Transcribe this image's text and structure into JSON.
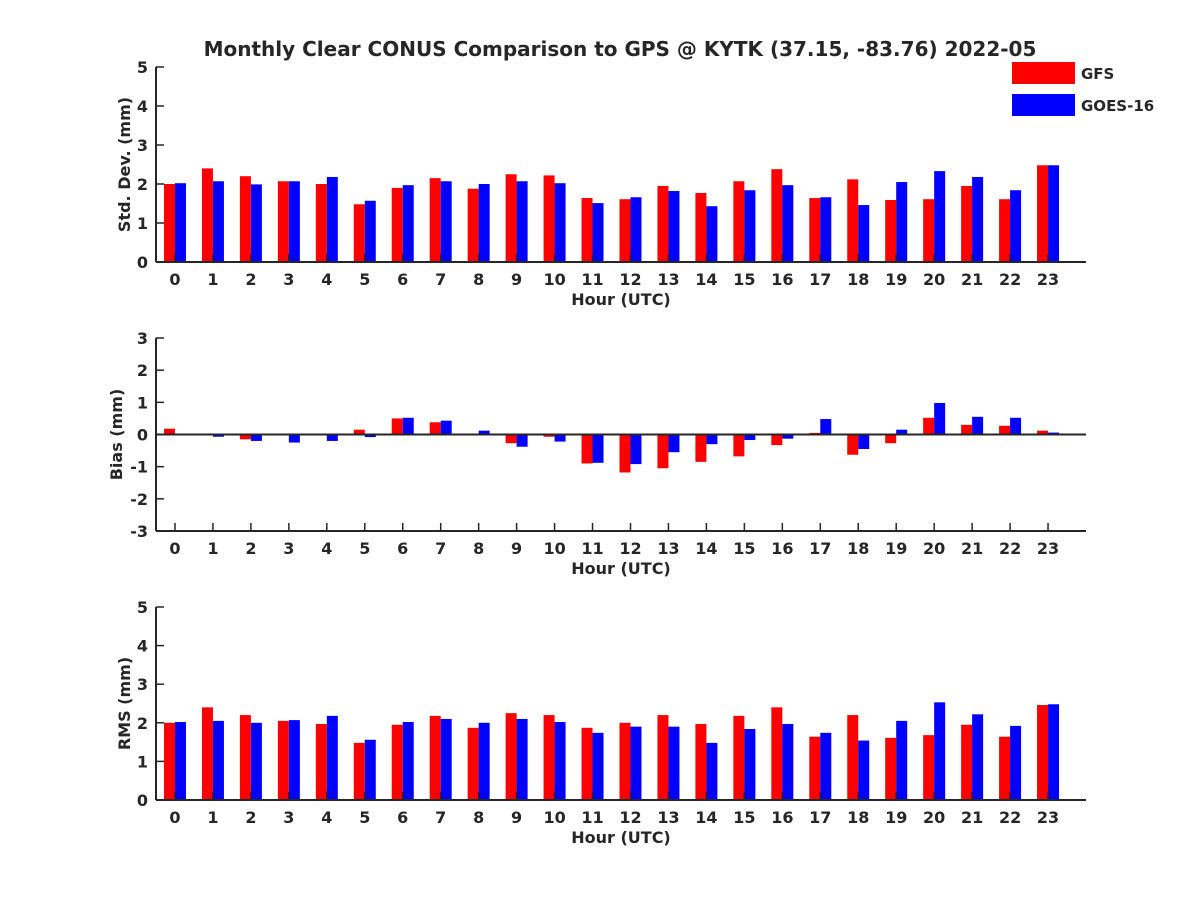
{
  "title": "Monthly Clear CONUS Comparison to GPS @ KYTK (37.15, -83.76) 2022-05",
  "legend": [
    {
      "name": "GFS",
      "color": "#ff0000"
    },
    {
      "name": "GOES-16",
      "color": "#0000ff"
    }
  ],
  "chart_data": [
    {
      "type": "bar",
      "xlabel": "Hour (UTC)",
      "ylabel": "Std. Dev. (mm)",
      "ylim": [
        0,
        5
      ],
      "yticks": [
        0,
        1,
        2,
        3,
        4,
        5
      ],
      "categories": [
        "0",
        "1",
        "2",
        "3",
        "4",
        "5",
        "6",
        "7",
        "8",
        "9",
        "10",
        "11",
        "12",
        "13",
        "14",
        "15",
        "16",
        "17",
        "18",
        "19",
        "20",
        "21",
        "22",
        "23"
      ],
      "series": [
        {
          "name": "GFS",
          "color": "#ff0000",
          "values": [
            2.0,
            2.4,
            2.2,
            2.07,
            2.0,
            1.48,
            1.9,
            2.15,
            1.88,
            2.25,
            2.22,
            1.64,
            1.61,
            1.95,
            1.77,
            2.07,
            2.38,
            1.64,
            2.12,
            1.59,
            1.61,
            1.95,
            1.61,
            2.48
          ]
        },
        {
          "name": "GOES-16",
          "color": "#0000ff",
          "values": [
            2.02,
            2.07,
            1.99,
            2.07,
            2.18,
            1.57,
            1.97,
            2.07,
            2.0,
            2.07,
            2.02,
            1.51,
            1.66,
            1.82,
            1.43,
            1.84,
            1.97,
            1.66,
            1.46,
            2.05,
            2.33,
            2.18,
            1.84,
            2.48
          ]
        }
      ]
    },
    {
      "type": "bar",
      "xlabel": "Hour (UTC)",
      "ylabel": "Bias (mm)",
      "ylim": [
        -3,
        3
      ],
      "yticks": [
        -3,
        -2,
        -1,
        0,
        1,
        2,
        3
      ],
      "zero_line": true,
      "categories": [
        "0",
        "1",
        "2",
        "3",
        "4",
        "5",
        "6",
        "7",
        "8",
        "9",
        "10",
        "11",
        "12",
        "13",
        "14",
        "15",
        "16",
        "17",
        "18",
        "19",
        "20",
        "21",
        "22",
        "23"
      ],
      "series": [
        {
          "name": "GFS",
          "color": "#ff0000",
          "values": [
            0.18,
            0.03,
            -0.15,
            -0.02,
            -0.02,
            0.15,
            0.5,
            0.38,
            0.03,
            -0.27,
            -0.07,
            -0.9,
            -1.18,
            -1.05,
            -0.85,
            -0.68,
            -0.33,
            0.05,
            -0.63,
            -0.27,
            0.52,
            0.3,
            0.27,
            0.12
          ]
        },
        {
          "name": "GOES-16",
          "color": "#0000ff",
          "values": [
            0.03,
            -0.07,
            -0.2,
            -0.25,
            -0.2,
            -0.08,
            0.52,
            0.43,
            0.12,
            -0.38,
            -0.22,
            -0.88,
            -0.92,
            -0.55,
            -0.3,
            -0.17,
            -0.13,
            0.48,
            -0.45,
            0.15,
            0.98,
            0.55,
            0.52,
            0.06
          ]
        }
      ]
    },
    {
      "type": "bar",
      "xlabel": "Hour (UTC)",
      "ylabel": "RMS (mm)",
      "ylim": [
        0,
        5
      ],
      "yticks": [
        0,
        1,
        2,
        3,
        4,
        5
      ],
      "categories": [
        "0",
        "1",
        "2",
        "3",
        "4",
        "5",
        "6",
        "7",
        "8",
        "9",
        "10",
        "11",
        "12",
        "13",
        "14",
        "15",
        "16",
        "17",
        "18",
        "19",
        "20",
        "21",
        "22",
        "23"
      ],
      "series": [
        {
          "name": "GFS",
          "color": "#ff0000",
          "values": [
            2.0,
            2.4,
            2.2,
            2.05,
            1.97,
            1.48,
            1.95,
            2.18,
            1.87,
            2.25,
            2.2,
            1.87,
            2.0,
            2.2,
            1.97,
            2.18,
            2.4,
            1.64,
            2.2,
            1.61,
            1.68,
            1.95,
            1.64,
            2.46
          ]
        },
        {
          "name": "GOES-16",
          "color": "#0000ff",
          "values": [
            2.02,
            2.05,
            2.0,
            2.07,
            2.18,
            1.56,
            2.02,
            2.1,
            2.0,
            2.1,
            2.02,
            1.74,
            1.9,
            1.9,
            1.48,
            1.84,
            1.97,
            1.74,
            1.54,
            2.05,
            2.53,
            2.22,
            1.92,
            2.48
          ]
        }
      ]
    }
  ]
}
